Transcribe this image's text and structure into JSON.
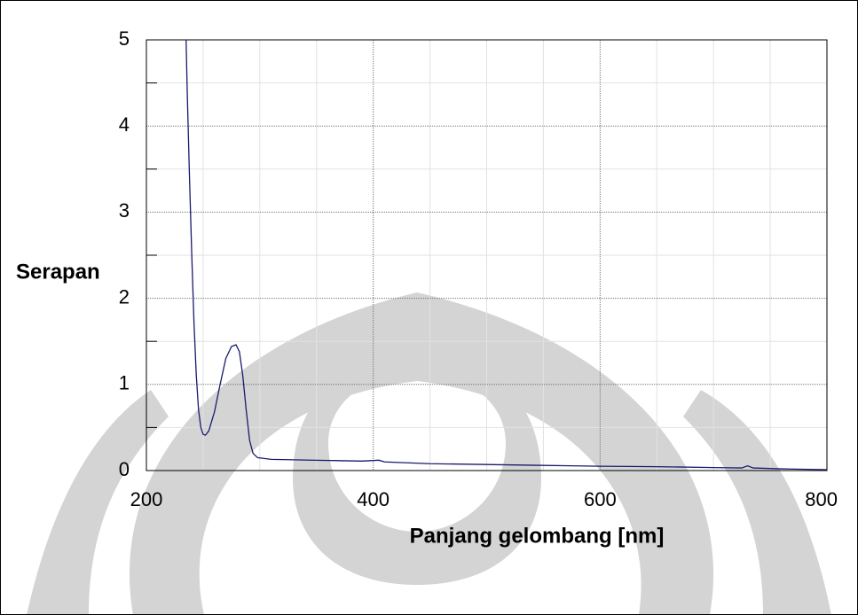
{
  "chart_data": {
    "type": "line",
    "y_label": "Serapan",
    "x_label": "Panjang gelombang [nm]",
    "xlim": [
      200,
      800
    ],
    "ylim": [
      0,
      5
    ],
    "xticks": [
      200,
      400,
      600,
      800
    ],
    "yticks": [
      0,
      1,
      2,
      3,
      4,
      5
    ],
    "minor_xticks": [
      250,
      300,
      350,
      450,
      500,
      550,
      650,
      700,
      750
    ],
    "minor_yticks": [
      0.5,
      1.5,
      2.5,
      3.5,
      4.5
    ],
    "grid": true,
    "series": [
      {
        "color": "#1a1a6e",
        "x": [
          235,
          236,
          238,
          240,
          242,
          244,
          246,
          248,
          250,
          252,
          255,
          260,
          265,
          270,
          275,
          279,
          282,
          285,
          288,
          291,
          294,
          298,
          310,
          350,
          390,
          405,
          410,
          450,
          500,
          550,
          600,
          650,
          700,
          725,
          730,
          735,
          760,
          800
        ],
        "values": [
          5,
          4.4,
          3.4,
          2.5,
          1.7,
          1.1,
          0.7,
          0.5,
          0.42,
          0.41,
          0.46,
          0.68,
          1.0,
          1.3,
          1.44,
          1.46,
          1.38,
          1.1,
          0.7,
          0.35,
          0.2,
          0.15,
          0.13,
          0.12,
          0.11,
          0.12,
          0.1,
          0.08,
          0.07,
          0.06,
          0.05,
          0.045,
          0.035,
          0.03,
          0.055,
          0.03,
          0.02,
          0.01
        ]
      }
    ]
  }
}
